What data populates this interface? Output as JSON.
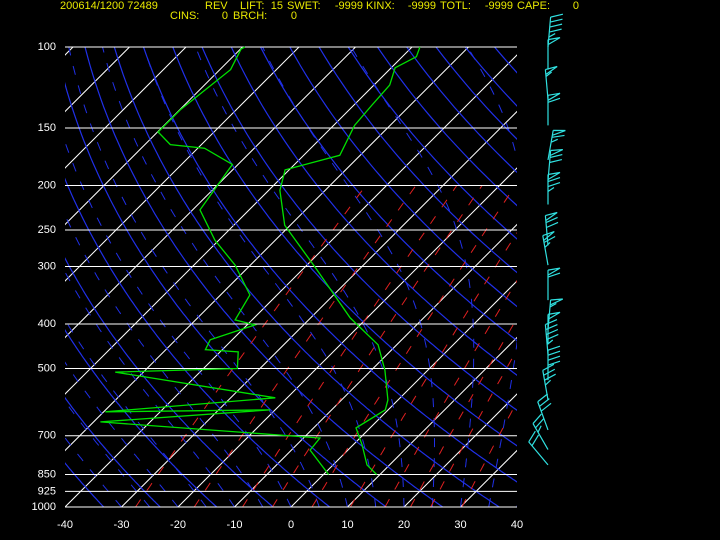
{
  "header": {
    "station": "200614/1200 72489",
    "mode": "REV",
    "indices": [
      {
        "label": "LIFT:",
        "value": 15
      },
      {
        "label": "SWET:",
        "value": -9999
      },
      {
        "label": "KINX:",
        "value": -9999
      },
      {
        "label": "TOTL:",
        "value": -9999
      },
      {
        "label": "CAPE:",
        "value": 0
      },
      {
        "label": "CINS:",
        "value": 0
      },
      {
        "label": "BRCH:",
        "value": 0
      }
    ]
  },
  "chart_data": {
    "type": "skewt",
    "xlim": [
      -40,
      40
    ],
    "xticks": [
      -40,
      -30,
      -20,
      -10,
      0,
      10,
      20,
      30,
      40
    ],
    "ylim": [
      1000,
      100
    ],
    "yticks": [
      100,
      150,
      200,
      250,
      300,
      400,
      500,
      700,
      850,
      925,
      1000
    ],
    "y_scale": "log",
    "grid": true,
    "series": [
      {
        "color": "#00e000",
        "y": [
          850,
          810,
          733,
          673,
          615,
          585,
          504,
          444,
          388,
          302,
          244,
          205,
          185,
          179,
          172,
          148,
          134,
          121,
          111,
          105,
          100
        ],
        "values": [
          9.4,
          6,
          1.6,
          -2.5,
          -0.5,
          -1.8,
          -7.6,
          -13.3,
          -23,
          -38,
          -51,
          -58,
          -60.7,
          -57.5,
          -53.6,
          -56.3,
          -56.8,
          -57.2,
          -59.3,
          -57.5,
          -58.6
        ]
      },
      {
        "color": "#00e000",
        "y": [
          850,
          752,
          708,
          653,
          615,
          621,
          579,
          509,
          500,
          460,
          455,
          433,
          402,
          392,
          346,
          298,
          263,
          226,
          180,
          166,
          163,
          153,
          137,
          112,
          101,
          100
        ],
        "values": [
          0.9,
          -6.7,
          -7.1,
          -48.8,
          -20.9,
          -49.7,
          -22.1,
          -55,
          -34,
          -36.8,
          -43,
          -43.9,
          -38.6,
          -43,
          -44.8,
          -52.7,
          -60.7,
          -68.7,
          -71,
          -78.8,
          -85.5,
          -89.9,
          -89.9,
          -88.1,
          -89.9,
          -89.6
        ]
      }
    ],
    "wind_barbs": {
      "color": "#30e0e0",
      "pressure": [
        100,
        112,
        130,
        148,
        176,
        195,
        220,
        270,
        298,
        355,
        412,
        443,
        466,
        530,
        585,
        680,
        750,
        810
      ],
      "direction": [
        5,
        0,
        355,
        0,
        10,
        5,
        0,
        355,
        350,
        0,
        5,
        0,
        355,
        0,
        350,
        340,
        330,
        320
      ],
      "speed": [
        45,
        50,
        55,
        60,
        65,
        70,
        75,
        70,
        65,
        60,
        55,
        50,
        45,
        40,
        35,
        30,
        25,
        20
      ]
    }
  }
}
